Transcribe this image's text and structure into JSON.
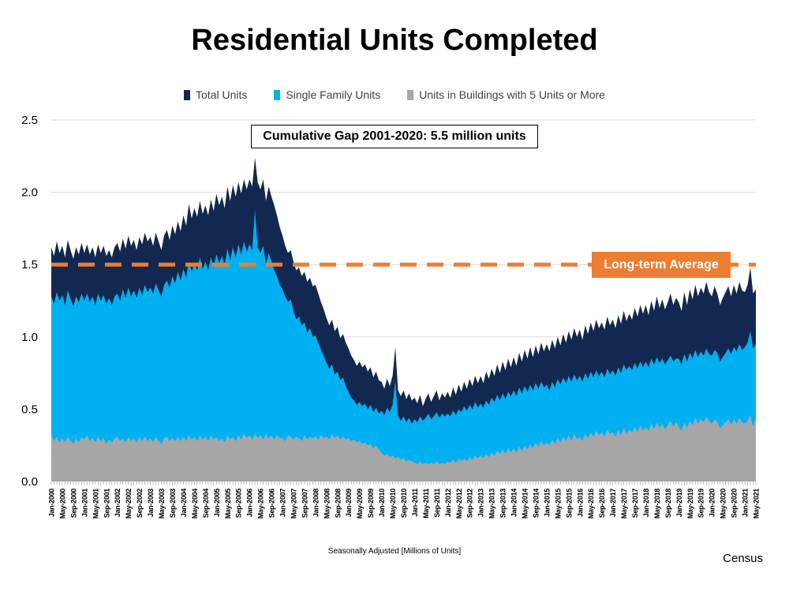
{
  "title": "Residential Units Completed",
  "legend": [
    {
      "label": "Total Units",
      "color": "#122850"
    },
    {
      "label": "Single Family Units",
      "color": "#00B0F0"
    },
    {
      "label": "Units in Buildings with 5 Units or More",
      "color": "#A6A6A6"
    }
  ],
  "annotation": "Cumulative Gap 2001-2020: 5.5 million units",
  "avg_line": {
    "label": "Long-term Average",
    "value": 1.5,
    "color": "#ED7D31"
  },
  "footer": {
    "caption": "Seasonally Adjusted [Millions of Units]",
    "source": "Census"
  },
  "chart_data": {
    "type": "area",
    "title": "Residential Units Completed",
    "ylabel": "Millions of Units (Seasonally Adjusted)",
    "ylim": [
      0,
      2.5
    ],
    "yticks": [
      0.0,
      0.5,
      1.0,
      1.5,
      2.0,
      2.5
    ],
    "grid": "horizontal",
    "legend_position": "top",
    "x_start": "Jan-2000",
    "x_end": "May-2021",
    "x_points": 257,
    "x_label_every_months": 4,
    "x_labels": [
      "Jan-2000",
      "May-2000",
      "Sep-2000",
      "Jan-2001",
      "May-2001",
      "Sep-2001",
      "Jan-2002",
      "May-2002",
      "Sep-2002",
      "Jan-2003",
      "May-2003",
      "Sep-2003",
      "Jan-2004",
      "May-2004",
      "Sep-2004",
      "Jan-2005",
      "May-2005",
      "Sep-2005",
      "Jan-2006",
      "May-2006",
      "Sep-2006",
      "Jan-2007",
      "May-2007",
      "Sep-2007",
      "Jan-2008",
      "May-2008",
      "Sep-2008",
      "Jan-2009",
      "May-2009",
      "Sep-2009",
      "Jan-2010",
      "May-2010",
      "Sep-2010",
      "Jan-2011",
      "May-2011",
      "Sep-2011",
      "Jan-2012",
      "May-2012",
      "Sep-2012",
      "Jan-2013",
      "May-2013",
      "Sep-2013",
      "Jan-2014",
      "May-2014",
      "Sep-2014",
      "Jan-2015",
      "May-2015",
      "Sep-2015",
      "Jan-2016",
      "May-2016",
      "Sep-2016",
      "Jan-2017",
      "May-2017",
      "Sep-2017",
      "Jan-2018",
      "May-2018",
      "Sep-2018",
      "Jan-2019",
      "May-2019",
      "Sep-2019",
      "Jan-2020",
      "May-2020",
      "Sep-2020",
      "Jan-2021",
      "May-2021"
    ],
    "series": [
      {
        "name": "Total Units",
        "color": "#122850",
        "values": [
          1.62,
          1.56,
          1.66,
          1.58,
          1.63,
          1.55,
          1.67,
          1.6,
          1.54,
          1.62,
          1.57,
          1.65,
          1.58,
          1.64,
          1.57,
          1.62,
          1.55,
          1.64,
          1.58,
          1.63,
          1.56,
          1.6,
          1.55,
          1.62,
          1.65,
          1.59,
          1.68,
          1.61,
          1.7,
          1.63,
          1.67,
          1.6,
          1.69,
          1.64,
          1.72,
          1.66,
          1.69,
          1.63,
          1.72,
          1.66,
          1.6,
          1.7,
          1.74,
          1.67,
          1.77,
          1.71,
          1.8,
          1.73,
          1.84,
          1.77,
          1.92,
          1.82,
          1.89,
          1.83,
          1.94,
          1.85,
          1.91,
          1.84,
          1.95,
          1.87,
          1.99,
          1.91,
          1.97,
          1.89,
          2.04,
          1.94,
          2.05,
          1.97,
          2.07,
          1.99,
          2.09,
          2.02,
          2.09,
          2.04,
          2.24,
          2.07,
          2.02,
          2.09,
          1.94,
          2.04,
          1.97,
          1.91,
          1.84,
          1.76,
          1.7,
          1.63,
          1.58,
          1.6,
          1.52,
          1.46,
          1.48,
          1.42,
          1.45,
          1.38,
          1.41,
          1.35,
          1.36,
          1.3,
          1.24,
          1.19,
          1.13,
          1.08,
          1.12,
          1.04,
          1.07,
          0.99,
          1.02,
          0.96,
          0.92,
          0.87,
          0.84,
          0.8,
          0.83,
          0.79,
          0.81,
          0.76,
          0.79,
          0.72,
          0.76,
          0.7,
          0.69,
          0.64,
          0.71,
          0.66,
          0.73,
          0.93,
          0.63,
          0.59,
          0.63,
          0.57,
          0.61,
          0.56,
          0.58,
          0.54,
          0.6,
          0.52,
          0.57,
          0.61,
          0.55,
          0.59,
          0.63,
          0.56,
          0.61,
          0.58,
          0.62,
          0.58,
          0.65,
          0.6,
          0.67,
          0.62,
          0.69,
          0.64,
          0.71,
          0.66,
          0.73,
          0.68,
          0.73,
          0.68,
          0.76,
          0.71,
          0.78,
          0.73,
          0.81,
          0.75,
          0.83,
          0.77,
          0.85,
          0.79,
          0.86,
          0.8,
          0.89,
          0.83,
          0.91,
          0.85,
          0.93,
          0.86,
          0.94,
          0.88,
          0.96,
          0.9,
          0.95,
          0.9,
          0.98,
          0.92,
          1.0,
          0.94,
          1.02,
          0.96,
          1.04,
          0.98,
          1.06,
          1.0,
          1.05,
          0.98,
          1.08,
          1.02,
          1.1,
          1.04,
          1.12,
          1.06,
          1.1,
          1.05,
          1.14,
          1.08,
          1.12,
          1.06,
          1.15,
          1.09,
          1.18,
          1.11,
          1.16,
          1.12,
          1.2,
          1.14,
          1.22,
          1.16,
          1.22,
          1.15,
          1.25,
          1.18,
          1.28,
          1.2,
          1.26,
          1.19,
          1.24,
          1.3,
          1.22,
          1.27,
          1.24,
          1.18,
          1.31,
          1.22,
          1.33,
          1.26,
          1.36,
          1.28,
          1.34,
          1.3,
          1.38,
          1.31,
          1.28,
          1.35,
          1.3,
          1.22,
          1.27,
          1.31,
          1.35,
          1.28,
          1.36,
          1.3,
          1.38,
          1.32,
          1.31,
          1.36,
          1.48,
          1.3,
          1.33
        ]
      },
      {
        "name": "Single Family Units",
        "color": "#00B0F0",
        "values": [
          1.28,
          1.23,
          1.31,
          1.25,
          1.29,
          1.22,
          1.32,
          1.26,
          1.21,
          1.28,
          1.24,
          1.3,
          1.25,
          1.3,
          1.24,
          1.28,
          1.22,
          1.3,
          1.25,
          1.29,
          1.23,
          1.27,
          1.22,
          1.28,
          1.3,
          1.25,
          1.33,
          1.27,
          1.34,
          1.28,
          1.32,
          1.27,
          1.34,
          1.29,
          1.36,
          1.31,
          1.34,
          1.3,
          1.37,
          1.32,
          1.28,
          1.36,
          1.39,
          1.34,
          1.42,
          1.37,
          1.45,
          1.39,
          1.47,
          1.41,
          1.52,
          1.45,
          1.51,
          1.46,
          1.55,
          1.47,
          1.52,
          1.46,
          1.55,
          1.49,
          1.57,
          1.51,
          1.56,
          1.49,
          1.61,
          1.53,
          1.62,
          1.55,
          1.64,
          1.57,
          1.66,
          1.59,
          1.64,
          1.6,
          1.88,
          1.62,
          1.58,
          1.63,
          1.5,
          1.58,
          1.52,
          1.46,
          1.42,
          1.36,
          1.33,
          1.28,
          1.24,
          1.26,
          1.18,
          1.12,
          1.14,
          1.08,
          1.1,
          1.03,
          1.06,
          1.0,
          1.01,
          0.96,
          0.91,
          0.87,
          0.82,
          0.78,
          0.81,
          0.74,
          0.76,
          0.7,
          0.72,
          0.66,
          0.62,
          0.58,
          0.56,
          0.53,
          0.55,
          0.52,
          0.54,
          0.5,
          0.53,
          0.48,
          0.51,
          0.47,
          0.49,
          0.46,
          0.51,
          0.48,
          0.53,
          0.7,
          0.45,
          0.42,
          0.45,
          0.41,
          0.44,
          0.4,
          0.43,
          0.41,
          0.45,
          0.42,
          0.44,
          0.47,
          0.43,
          0.45,
          0.48,
          0.44,
          0.47,
          0.45,
          0.47,
          0.45,
          0.49,
          0.46,
          0.5,
          0.48,
          0.52,
          0.49,
          0.53,
          0.5,
          0.55,
          0.51,
          0.54,
          0.51,
          0.56,
          0.53,
          0.58,
          0.55,
          0.6,
          0.56,
          0.61,
          0.57,
          0.62,
          0.59,
          0.63,
          0.59,
          0.65,
          0.61,
          0.66,
          0.62,
          0.67,
          0.63,
          0.68,
          0.64,
          0.69,
          0.65,
          0.67,
          0.63,
          0.69,
          0.65,
          0.71,
          0.67,
          0.72,
          0.68,
          0.73,
          0.69,
          0.74,
          0.7,
          0.73,
          0.69,
          0.75,
          0.71,
          0.76,
          0.72,
          0.77,
          0.73,
          0.76,
          0.72,
          0.78,
          0.74,
          0.77,
          0.73,
          0.79,
          0.75,
          0.81,
          0.77,
          0.8,
          0.77,
          0.82,
          0.78,
          0.83,
          0.79,
          0.83,
          0.79,
          0.85,
          0.81,
          0.86,
          0.82,
          0.85,
          0.81,
          0.84,
          0.87,
          0.83,
          0.85,
          0.85,
          0.81,
          0.88,
          0.83,
          0.89,
          0.85,
          0.91,
          0.86,
          0.9,
          0.87,
          0.92,
          0.88,
          0.87,
          0.91,
          0.89,
          0.83,
          0.86,
          0.89,
          0.92,
          0.88,
          0.93,
          0.9,
          0.95,
          0.91,
          0.93,
          0.96,
          1.04,
          0.92,
          0.95
        ]
      },
      {
        "name": "Units in Buildings with 5 Units or More",
        "color": "#A6A6A6",
        "values": [
          0.32,
          0.28,
          0.31,
          0.27,
          0.3,
          0.27,
          0.31,
          0.28,
          0.26,
          0.3,
          0.27,
          0.31,
          0.29,
          0.32,
          0.28,
          0.3,
          0.27,
          0.31,
          0.28,
          0.3,
          0.26,
          0.29,
          0.27,
          0.3,
          0.31,
          0.28,
          0.3,
          0.27,
          0.31,
          0.28,
          0.3,
          0.27,
          0.31,
          0.28,
          0.31,
          0.28,
          0.3,
          0.27,
          0.31,
          0.28,
          0.26,
          0.3,
          0.31,
          0.28,
          0.3,
          0.28,
          0.31,
          0.28,
          0.31,
          0.28,
          0.32,
          0.29,
          0.31,
          0.28,
          0.32,
          0.29,
          0.31,
          0.28,
          0.32,
          0.29,
          0.31,
          0.28,
          0.3,
          0.27,
          0.32,
          0.29,
          0.31,
          0.28,
          0.32,
          0.29,
          0.33,
          0.3,
          0.32,
          0.29,
          0.33,
          0.3,
          0.32,
          0.29,
          0.33,
          0.3,
          0.32,
          0.29,
          0.32,
          0.3,
          0.3,
          0.28,
          0.32,
          0.31,
          0.29,
          0.31,
          0.3,
          0.28,
          0.32,
          0.29,
          0.31,
          0.3,
          0.31,
          0.29,
          0.32,
          0.3,
          0.31,
          0.29,
          0.33,
          0.3,
          0.32,
          0.29,
          0.31,
          0.29,
          0.3,
          0.28,
          0.29,
          0.27,
          0.28,
          0.26,
          0.27,
          0.25,
          0.26,
          0.23,
          0.25,
          0.22,
          0.2,
          0.18,
          0.19,
          0.17,
          0.18,
          0.16,
          0.17,
          0.15,
          0.16,
          0.14,
          0.15,
          0.14,
          0.13,
          0.12,
          0.14,
          0.12,
          0.13,
          0.12,
          0.13,
          0.12,
          0.14,
          0.12,
          0.13,
          0.12,
          0.14,
          0.13,
          0.15,
          0.13,
          0.16,
          0.14,
          0.16,
          0.14,
          0.17,
          0.15,
          0.18,
          0.16,
          0.18,
          0.16,
          0.19,
          0.17,
          0.2,
          0.18,
          0.21,
          0.19,
          0.22,
          0.19,
          0.23,
          0.2,
          0.23,
          0.2,
          0.24,
          0.21,
          0.25,
          0.22,
          0.26,
          0.23,
          0.27,
          0.24,
          0.28,
          0.25,
          0.27,
          0.25,
          0.29,
          0.26,
          0.3,
          0.27,
          0.31,
          0.28,
          0.32,
          0.28,
          0.33,
          0.29,
          0.31,
          0.28,
          0.33,
          0.3,
          0.34,
          0.31,
          0.35,
          0.32,
          0.34,
          0.31,
          0.36,
          0.33,
          0.34,
          0.31,
          0.36,
          0.32,
          0.37,
          0.33,
          0.36,
          0.34,
          0.38,
          0.34,
          0.39,
          0.35,
          0.38,
          0.35,
          0.4,
          0.36,
          0.41,
          0.37,
          0.4,
          0.36,
          0.39,
          0.42,
          0.38,
          0.41,
          0.38,
          0.35,
          0.41,
          0.37,
          0.42,
          0.39,
          0.44,
          0.4,
          0.43,
          0.41,
          0.45,
          0.42,
          0.4,
          0.43,
          0.41,
          0.37,
          0.39,
          0.41,
          0.43,
          0.39,
          0.43,
          0.4,
          0.44,
          0.41,
          0.4,
          0.42,
          0.46,
          0.38,
          0.44
        ]
      }
    ]
  }
}
